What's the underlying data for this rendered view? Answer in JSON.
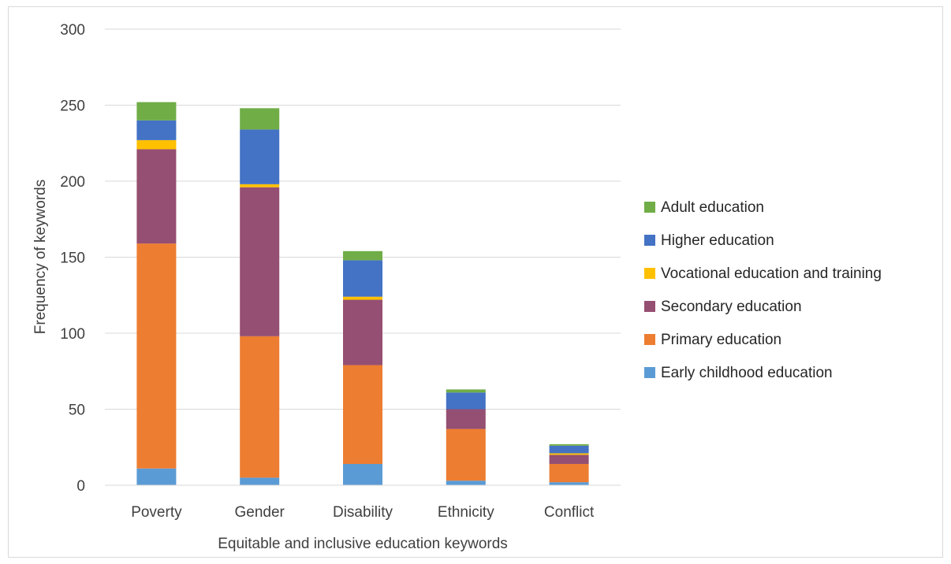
{
  "chart_data": {
    "type": "bar",
    "stacked": true,
    "title": "",
    "xlabel": "Equitable and inclusive education keywords",
    "ylabel": "Frequency of keywords",
    "ylim": [
      0,
      300
    ],
    "yticks": [
      0,
      50,
      100,
      150,
      200,
      250,
      300
    ],
    "grid": true,
    "legend_position": "right",
    "categories": [
      "Poverty",
      "Gender",
      "Disability",
      "Ethnicity",
      "Conflict"
    ],
    "series": [
      {
        "name": "Early childhood education",
        "color": "#5b9bd5",
        "values": [
          11,
          5,
          14,
          3,
          2
        ]
      },
      {
        "name": "Primary education",
        "color": "#ed7d31",
        "values": [
          148,
          93,
          65,
          34,
          12
        ]
      },
      {
        "name": "Secondary education",
        "color": "#954f72",
        "values": [
          62,
          98,
          43,
          13,
          6
        ]
      },
      {
        "name": "Vocational education and training",
        "color": "#ffc000",
        "values": [
          6,
          2,
          2,
          0,
          1
        ]
      },
      {
        "name": "Higher education",
        "color": "#4472c4",
        "values": [
          13,
          36,
          24,
          11,
          5
        ]
      },
      {
        "name": "Adult education",
        "color": "#70ad47",
        "values": [
          12,
          14,
          6,
          2,
          1
        ]
      }
    ]
  }
}
